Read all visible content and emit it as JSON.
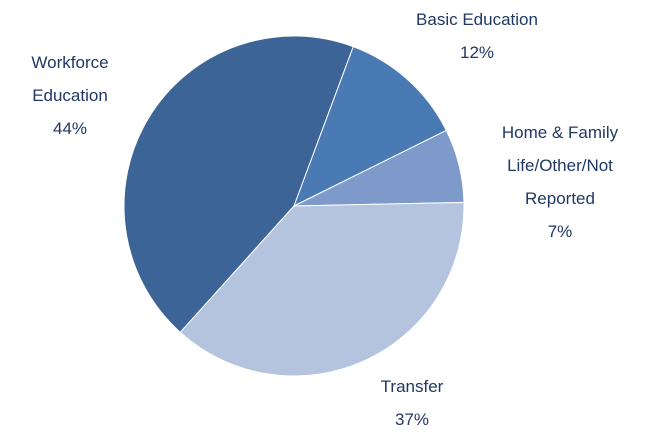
{
  "chart_data": {
    "type": "pie",
    "categories": [
      "Workforce Education",
      "Basic Education",
      "Home & Family Life/Other/Not Reported",
      "Transfer"
    ],
    "values": [
      44,
      12,
      7,
      37
    ],
    "value_labels": [
      "44%",
      "12%",
      "7%",
      "37%"
    ],
    "colors": [
      "#3c6496",
      "#4a7ab4",
      "#7d9acb",
      "#b4c3de"
    ]
  }
}
